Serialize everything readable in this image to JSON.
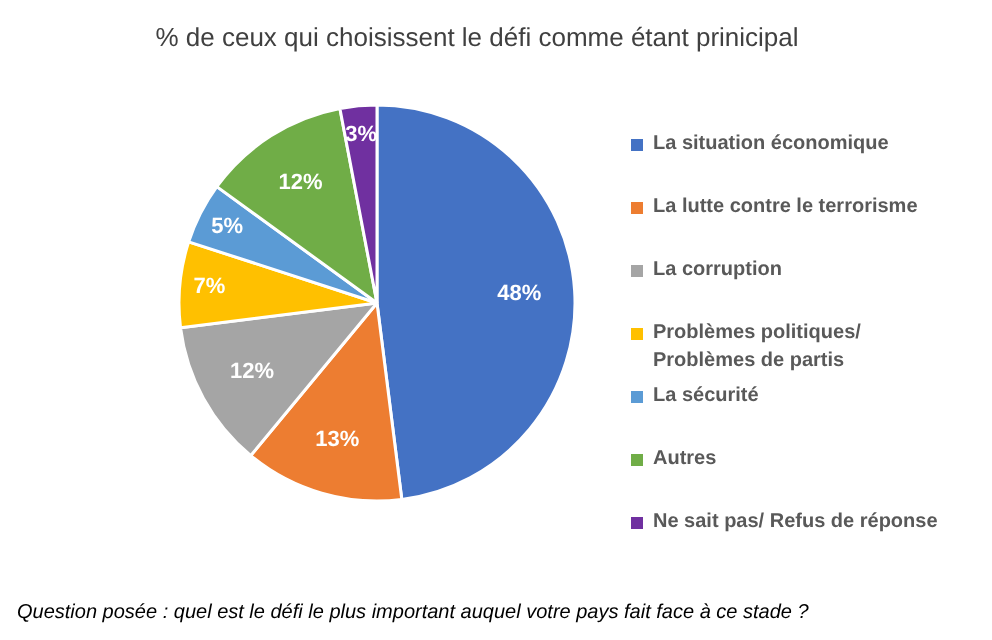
{
  "chart_data": {
    "type": "pie",
    "title": "% de ceux qui choisissent le défi comme étant prinicipal",
    "categories": [
      "La situation économique",
      "La lutte contre le terrorisme",
      "La corruption",
      "Problèmes politiques/ Problèmes de partis",
      "La sécurité",
      "Autres",
      "Ne sait pas/ Refus de réponse"
    ],
    "values": [
      48,
      13,
      12,
      7,
      5,
      12,
      3
    ],
    "colors": [
      "#4472c4",
      "#ed7d31",
      "#a5a5a5",
      "#ffc000",
      "#5b9bd5",
      "#70ad47",
      "#7030a0"
    ],
    "value_labels": [
      "48%",
      "13%",
      "12%",
      "7%",
      "5%",
      "12%",
      "3%"
    ],
    "legend": "right",
    "annotations": [
      "Question posée :  quel est le défi le plus important auquel votre pays fait face à ce stade  ?"
    ]
  }
}
